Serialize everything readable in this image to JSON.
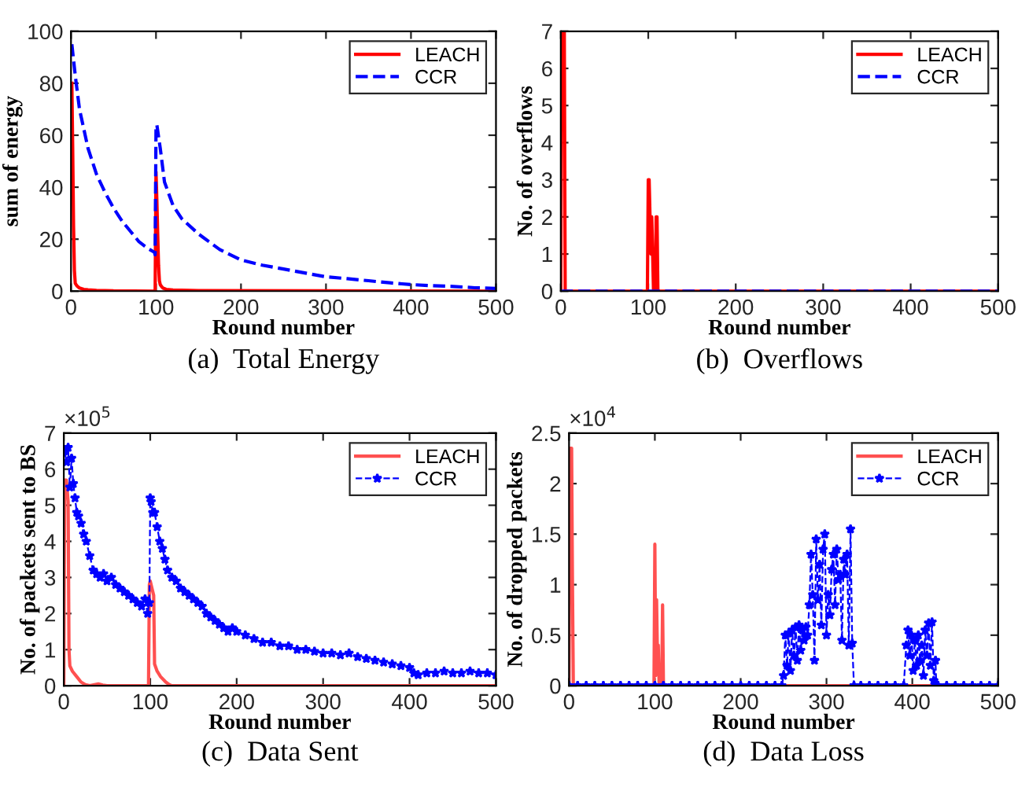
{
  "chart_data": [
    {
      "type": "line",
      "title": "(a)  Total Energy",
      "xlabel": "Round number",
      "ylabel": "sum of energy",
      "xlim": [
        0,
        500
      ],
      "xticks": [
        0,
        100,
        200,
        300,
        400,
        500
      ],
      "ylim": [
        0,
        100
      ],
      "yticks": [
        0,
        20,
        40,
        60,
        80,
        100
      ],
      "grid": false,
      "legend": "top right",
      "series": [
        {
          "name": "LEACH",
          "color": "#ff0000",
          "line_style": "solid",
          "marker": "none",
          "x": [
            1,
            2,
            3,
            4,
            5,
            7,
            10,
            15,
            20,
            30,
            50,
            98,
            99,
            100,
            101,
            102,
            103,
            104,
            105,
            106,
            108,
            112,
            120,
            150,
            300,
            500
          ],
          "values": [
            80,
            55,
            25,
            8,
            3,
            2,
            1.2,
            0.7,
            0.5,
            0.3,
            0.1,
            0,
            0,
            46,
            35,
            22,
            10,
            4,
            2.5,
            2,
            1.2,
            0.7,
            0.4,
            0.2,
            0.1,
            0
          ]
        },
        {
          "name": "CCR",
          "color": "#0000ff",
          "line_style": "dashed",
          "marker": "none",
          "x": [
            1,
            5,
            10,
            20,
            30,
            40,
            50,
            60,
            70,
            80,
            90,
            98,
            99,
            100,
            101,
            105,
            110,
            120,
            130,
            150,
            175,
            200,
            225,
            250,
            275,
            300,
            325,
            350,
            375,
            400,
            425,
            450,
            475,
            500
          ],
          "values": [
            95,
            83,
            70,
            55,
            45,
            38,
            32,
            27,
            23,
            19,
            16.5,
            15,
            14,
            62,
            64,
            55,
            42,
            33,
            28,
            22,
            16,
            12,
            10,
            8.5,
            7,
            5.5,
            4.8,
            4,
            3.2,
            2.5,
            2.1,
            1.8,
            1.3,
            1
          ]
        }
      ]
    },
    {
      "type": "line",
      "title": "(b)  Overflows",
      "xlabel": "Round number",
      "ylabel": "No. of overflows",
      "xlim": [
        0,
        500
      ],
      "xticks": [
        0,
        100,
        200,
        300,
        400,
        500
      ],
      "ylim": [
        0,
        7
      ],
      "yticks": [
        0,
        1,
        2,
        3,
        4,
        5,
        6,
        7
      ],
      "grid": false,
      "legend": "top right",
      "series": [
        {
          "name": "LEACH",
          "color": "#ff0000",
          "line_style": "solid",
          "marker": "none",
          "x": [
            0,
            1,
            3,
            4,
            5,
            99,
            100,
            101,
            102,
            103,
            104,
            105,
            106,
            108,
            109,
            110,
            111,
            500
          ],
          "values": [
            0,
            7,
            7,
            7,
            0,
            0,
            3,
            3,
            2,
            1,
            2,
            1,
            0,
            0,
            2,
            2,
            0,
            0
          ]
        },
        {
          "name": "CCR",
          "color": "#0000ff",
          "line_style": "dashed",
          "marker": "none",
          "x": [
            0,
            500
          ],
          "values": [
            0,
            0
          ]
        }
      ]
    },
    {
      "type": "line",
      "title": "(c)  Data Sent",
      "xlabel": "Round number",
      "ylabel": "No. of packets sent to BS",
      "xlim": [
        0,
        500
      ],
      "xticks": [
        0,
        100,
        200,
        300,
        400,
        500
      ],
      "ylim": [
        0,
        7
      ],
      "yticks": [
        0,
        1,
        2,
        3,
        4,
        5,
        6,
        7
      ],
      "grid": false,
      "legend": "top right",
      "annotations": [
        "×10$^{5}$"
      ],
      "series": [
        {
          "name": "LEACH",
          "color": "#ff5050",
          "line_style": "solid",
          "marker": "none",
          "x": [
            0,
            1,
            3,
            5,
            6,
            7,
            10,
            15,
            20,
            25,
            30,
            40,
            45,
            50,
            98,
            99,
            100,
            102,
            104,
            105,
            108,
            112,
            118,
            122,
            125,
            500
          ],
          "values": [
            0,
            5.7,
            5.7,
            5.1,
            1,
            0.55,
            0.4,
            0.25,
            0.1,
            0.03,
            0,
            0.05,
            0.02,
            0,
            0,
            2.8,
            2.9,
            2.7,
            2.5,
            0.6,
            0.4,
            0.25,
            0.1,
            0.03,
            0,
            0
          ]
        },
        {
          "name": "CCR",
          "color": "#0000ff",
          "line_style": "dashed",
          "marker": "star",
          "x": [
            1,
            3,
            5,
            7,
            9,
            11,
            13,
            15,
            17,
            20,
            23,
            26,
            30,
            34,
            38,
            42,
            46,
            50,
            55,
            60,
            65,
            70,
            75,
            80,
            85,
            90,
            94,
            97,
            99,
            100,
            101,
            103,
            105,
            108,
            111,
            114,
            117,
            120,
            125,
            130,
            135,
            140,
            145,
            150,
            155,
            160,
            165,
            170,
            175,
            180,
            185,
            190,
            195,
            200,
            210,
            220,
            230,
            240,
            250,
            260,
            270,
            280,
            290,
            300,
            310,
            320,
            330,
            340,
            350,
            360,
            370,
            380,
            390,
            400,
            405,
            410,
            420,
            430,
            440,
            450,
            460,
            470,
            480,
            490,
            500
          ],
          "values": [
            6.5,
            6.2,
            6.6,
            5.5,
            6.3,
            5.6,
            5.2,
            4.8,
            4.7,
            4.5,
            4.2,
            4.0,
            3.6,
            3.2,
            3.1,
            3.0,
            3.1,
            2.9,
            3.0,
            2.8,
            2.7,
            2.6,
            2.5,
            2.4,
            2.3,
            2.2,
            2.4,
            2.0,
            2.3,
            5.2,
            5.1,
            4.8,
            4.8,
            4.4,
            4.0,
            3.8,
            3.5,
            3.2,
            3.0,
            2.9,
            2.7,
            2.6,
            2.5,
            2.4,
            2.3,
            2.2,
            2.0,
            1.9,
            1.8,
            1.7,
            1.6,
            1.5,
            1.6,
            1.5,
            1.4,
            1.3,
            1.2,
            1.2,
            1.1,
            1.1,
            1.0,
            1.0,
            0.95,
            0.9,
            0.9,
            0.85,
            0.9,
            0.8,
            0.75,
            0.7,
            0.65,
            0.6,
            0.55,
            0.5,
            0.35,
            0.3,
            0.35,
            0.35,
            0.4,
            0.35,
            0.35,
            0.4,
            0.35,
            0.35,
            0.3
          ]
        }
      ]
    },
    {
      "type": "line",
      "title": "(d)  Data Loss",
      "xlabel": "Round number",
      "ylabel": "No. of dropped packets",
      "xlim": [
        0,
        500
      ],
      "xticks": [
        0,
        100,
        200,
        300,
        400,
        500
      ],
      "ylim": [
        0,
        2.5
      ],
      "yticks": [
        0,
        0.5,
        1,
        1.5,
        2,
        2.5
      ],
      "grid": false,
      "legend": "top right",
      "annotations": [
        "×10$^{4}$"
      ],
      "series": [
        {
          "name": "LEACH",
          "color": "#ff5050",
          "line_style": "solid",
          "marker": "none",
          "x": [
            0,
            1,
            3,
            4,
            5,
            99,
            100,
            101,
            102,
            103,
            104,
            105,
            108,
            109,
            110,
            500
          ],
          "values": [
            0,
            2.35,
            2.35,
            1,
            0,
            0,
            1.4,
            0.1,
            0.85,
            0.3,
            0.4,
            0,
            0,
            0.8,
            0,
            0
          ]
        },
        {
          "name": "CCR",
          "color": "#0000ff",
          "line_style": "dashed",
          "marker": "star",
          "x": [
            0,
            10,
            20,
            30,
            40,
            50,
            60,
            70,
            80,
            90,
            100,
            110,
            120,
            130,
            140,
            150,
            160,
            170,
            180,
            190,
            200,
            210,
            220,
            230,
            240,
            248,
            250,
            252,
            254,
            256,
            258,
            260,
            262,
            264,
            266,
            268,
            270,
            272,
            274,
            276,
            278,
            280,
            282,
            284,
            286,
            288,
            290,
            292,
            294,
            296,
            298,
            300,
            302,
            304,
            306,
            308,
            310,
            312,
            314,
            316,
            318,
            320,
            322,
            324,
            326,
            328,
            330,
            332,
            340,
            350,
            360,
            370,
            380,
            390,
            393,
            395,
            397,
            399,
            401,
            403,
            405,
            407,
            409,
            411,
            413,
            415,
            417,
            419,
            421,
            423,
            425,
            427,
            428,
            430,
            440,
            450,
            460,
            470,
            480,
            490,
            500
          ],
          "values": [
            0,
            0,
            0,
            0,
            0,
            0,
            0,
            0,
            0,
            0,
            0,
            0,
            0,
            0,
            0,
            0,
            0,
            0,
            0,
            0,
            0,
            0,
            0,
            0,
            0,
            0,
            0.1,
            0.5,
            0.2,
            0.52,
            0.15,
            0.55,
            0.3,
            0.58,
            0.25,
            0.6,
            0.35,
            0.55,
            0.45,
            0.58,
            0.5,
            0.8,
            1.3,
            0.9,
            0.25,
            1.45,
            0.85,
            1.2,
            0.6,
            1.35,
            1.5,
            0.5,
            0.9,
            0.7,
            1.15,
            1.3,
            0.8,
            1.35,
            1.05,
            1.1,
            0.45,
            1.25,
            1.1,
            1.3,
            0.4,
            1.55,
            0.42,
            0,
            0,
            0,
            0,
            0,
            0,
            0,
            0.4,
            0.55,
            0.3,
            0.5,
            0.15,
            0.45,
            0.2,
            0.5,
            0.25,
            0.4,
            0.1,
            0.55,
            0.3,
            0.62,
            0.2,
            0.63,
            0.05,
            0.25,
            0,
            0,
            0,
            0,
            0,
            0,
            0,
            0,
            0
          ]
        }
      ]
    }
  ]
}
